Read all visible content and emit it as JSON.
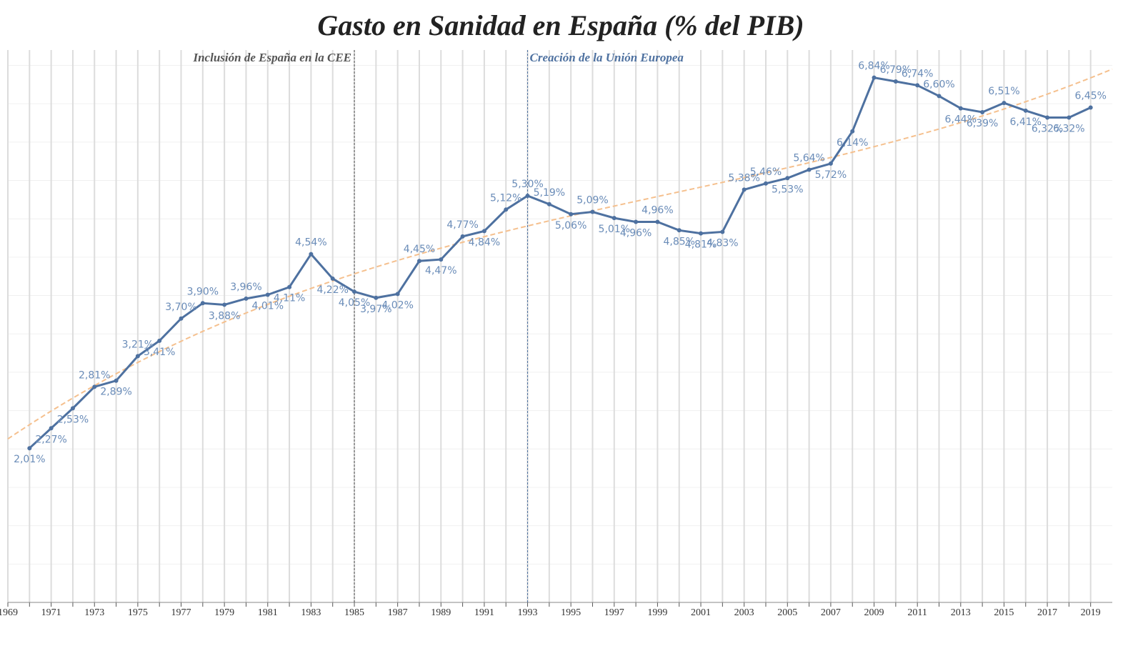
{
  "chart_data": {
    "type": "line",
    "title": "Gasto en Sanidad en España (% del PIB)",
    "x": [
      1970,
      1971,
      1972,
      1973,
      1974,
      1975,
      1976,
      1977,
      1978,
      1979,
      1980,
      1981,
      1982,
      1983,
      1984,
      1985,
      1986,
      1987,
      1988,
      1989,
      1990,
      1991,
      1992,
      1993,
      1994,
      1995,
      1996,
      1997,
      1998,
      1999,
      2000,
      2001,
      2002,
      2003,
      2004,
      2005,
      2006,
      2007,
      2008,
      2009,
      2010,
      2011,
      2012,
      2013,
      2014,
      2015,
      2016,
      2017,
      2018,
      2019
    ],
    "series": [
      {
        "color": "#4e71a0",
        "values": [
          2.01,
          2.27,
          2.53,
          2.81,
          2.89,
          3.21,
          3.41,
          3.7,
          3.9,
          3.88,
          3.96,
          4.01,
          4.11,
          4.54,
          4.22,
          4.05,
          3.97,
          4.02,
          4.45,
          4.47,
          4.77,
          4.84,
          5.12,
          5.3,
          5.19,
          5.06,
          5.09,
          5.01,
          4.96,
          4.96,
          4.85,
          4.81,
          4.83,
          5.38,
          5.46,
          5.53,
          5.64,
          5.72,
          6.14,
          6.84,
          6.79,
          6.74,
          6.6,
          6.44,
          6.39,
          6.51,
          6.41,
          6.32,
          6.32,
          6.45
        ],
        "value_labels": [
          "2,01%",
          "2,27%",
          "2,53%",
          "2,81%",
          "2,89%",
          "3,21%",
          "3,41%",
          "3,70%",
          "3,90%",
          "3,88%",
          "3,96%",
          "4,01%",
          "4,11%",
          "4,54%",
          "4,22%",
          "4,05%",
          "3,97%",
          "4,02%",
          "4,45%",
          "4,47%",
          "4,77%",
          "4,84%",
          "5,12%",
          "5,30%",
          "5,19%",
          "5,06%",
          "5,09%",
          "5,01%",
          "4,96%",
          "4,96%",
          "4,85%",
          "4,81%",
          "4,83%",
          "5,38%",
          "5,46%",
          "5,53%",
          "5,64%",
          "5,72%",
          "6,14%",
          "6,84%",
          "6,79%",
          "6,74%",
          "6,60%",
          "6,44%",
          "6,39%",
          "6,51%",
          "6,41%",
          "6,32%",
          "6,32%",
          "6,45%"
        ]
      }
    ],
    "trend_color": "#f5c08e",
    "xlim": [
      1969,
      2020
    ],
    "xticks": [
      1969,
      1971,
      1973,
      1975,
      1977,
      1979,
      1981,
      1983,
      1985,
      1987,
      1989,
      1991,
      1993,
      1995,
      1997,
      1999,
      2001,
      2003,
      2005,
      2007,
      2009,
      2011,
      2013,
      2015,
      2017,
      2019
    ],
    "ylim": [
      0,
      7.2
    ],
    "yticks": [
      0,
      0.5,
      1,
      1.5,
      2,
      2.5,
      3,
      3.5,
      4,
      4.5,
      5,
      5.5,
      6,
      6.5,
      7
    ],
    "grid": true,
    "annotations": [
      {
        "x": 1985,
        "text": "Inclusión de España en la CEE",
        "color": "#555555"
      },
      {
        "x": 1993,
        "text": "Creación de la Unión Europea",
        "color": "#4e71a0"
      }
    ]
  }
}
